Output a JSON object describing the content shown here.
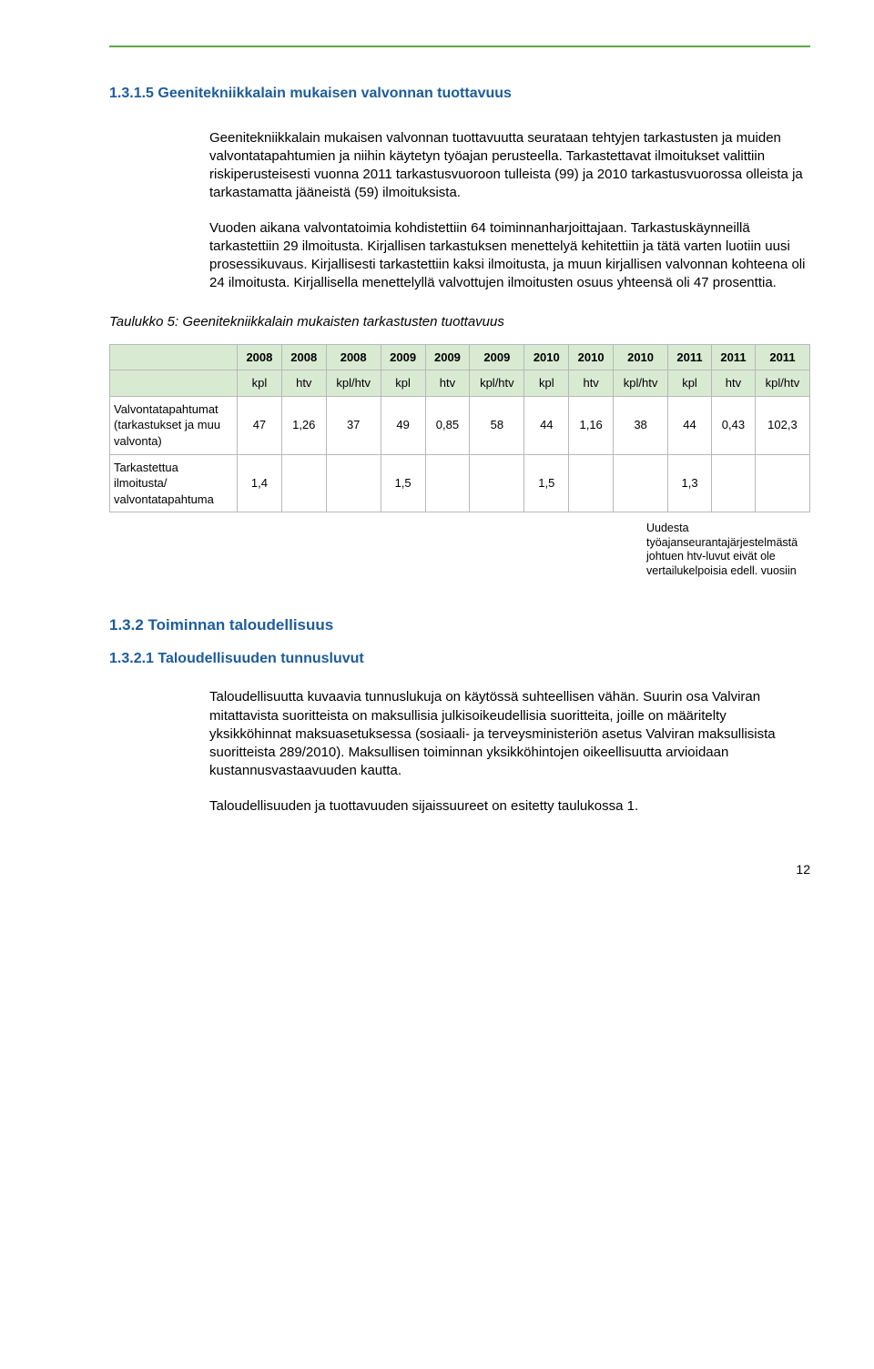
{
  "top_rule_color": "#5fa645",
  "sec_1315": {
    "num_title": "1.3.1.5  Geenitekniikkalain mukaisen valvonnan tuottavuus",
    "p1": "Geenitekniikkalain mukaisen valvonnan tuottavuutta seurataan tehtyjen tarkastusten ja muiden valvontatapahtumien ja niihin käytetyn työajan perusteella. Tarkastettavat ilmoitukset valittiin riskiperusteisesti vuonna 2011 tarkastusvuoroon tulleista (99) ja 2010 tarkastusvuorossa olleista ja tarkastamatta jääneistä (59) ilmoituksista.",
    "p2": "Vuoden aikana valvontatoimia kohdistettiin 64 toiminnanharjoittajaan. Tarkastuskäynneillä tarkastettiin 29 ilmoitusta. Kirjallisen tarkastuksen menettelyä kehitettiin ja tätä varten luotiin uusi prosessikuvaus. Kirjallisesti tarkastettiin kaksi ilmoitusta, ja muun kirjallisen valvonnan kohteena oli 24 ilmoitusta. Kirjallisella menettelyllä valvottujen ilmoitusten osuus yhteensä oli 47 prosenttia."
  },
  "table5": {
    "caption": "Taulukko 5: Geenitekniikkalain mukaisten tarkastusten tuottavuus",
    "years": [
      "2008",
      "2008",
      "2008",
      "2009",
      "2009",
      "2009",
      "2010",
      "2010",
      "2010",
      "2011",
      "2011",
      "2011"
    ],
    "units": [
      "kpl",
      "htv",
      "kpl/htv",
      "kpl",
      "htv",
      "kpl/htv",
      "kpl",
      "htv",
      "kpl/htv",
      "kpl",
      "htv",
      "kpl/htv"
    ],
    "row1_label": "Valvontatapahtumat (tarkastukset ja muu valvonta)",
    "row1": [
      "47",
      "1,26",
      "37",
      "49",
      "0,85",
      "58",
      "44",
      "1,16",
      "38",
      "44",
      "0,43",
      "102,3"
    ],
    "row2_label": "Tarkastettua ilmoitusta/ valvontatapahtuma",
    "row2": [
      "1,4",
      "",
      "",
      "1,5",
      "",
      "",
      "1,5",
      "",
      "",
      "1,3",
      "",
      ""
    ],
    "header_bg": "#d9ead3",
    "border_color": "#b8b8b8"
  },
  "footnote": "Uudesta työajanseurantajärjestelmästä johtuen htv-luvut eivät ole vertailukelpoisia edell. vuosiin",
  "sec_132": "1.3.2   Toiminnan taloudellisuus",
  "sec_1321": {
    "title": "1.3.2.1  Taloudellisuuden tunnusluvut",
    "p1": "Taloudellisuutta kuvaavia tunnuslukuja on käytössä suhteellisen vähän. Suurin osa Valviran mitattavista suoritteista on maksullisia julkisoikeudellisia suoritteita, joille on määritelty yksikköhinnat maksuasetuksessa (sosiaali- ja terveysministeriön asetus Valviran maksullisista suoritteista 289/2010). Maksullisen toiminnan yksikköhintojen oikeellisuutta arvioidaan kustannusvastaavuuden kautta.",
    "p2": "Taloudellisuuden ja tuottavuuden sijaissuureet on esitetty taulukossa 1."
  },
  "page_number": "12"
}
